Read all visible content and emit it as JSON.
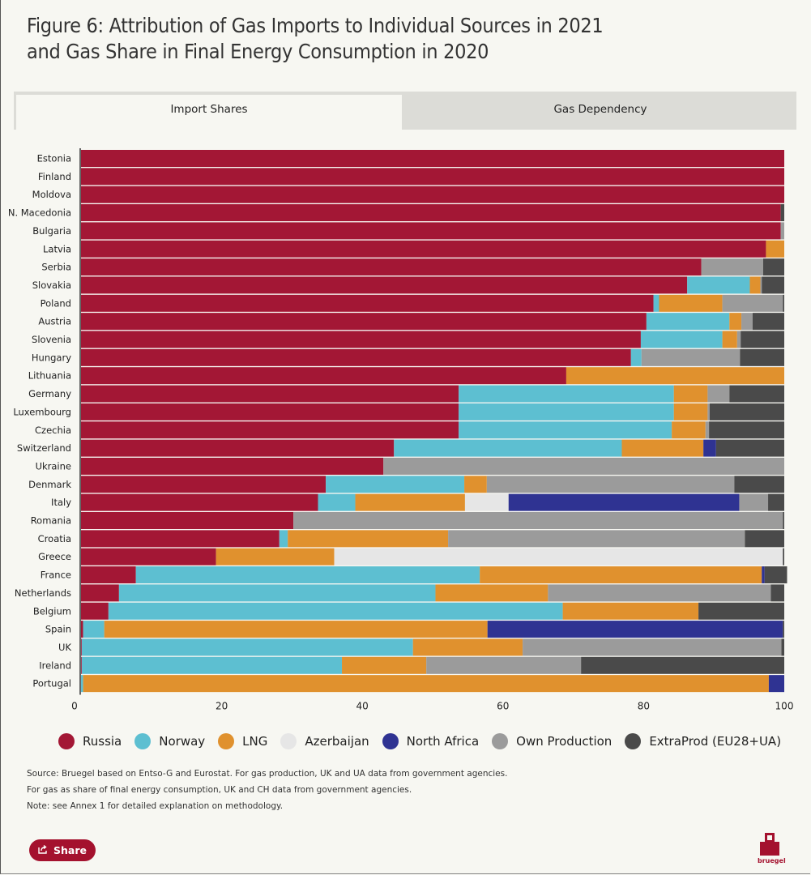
{
  "title": {
    "line1": "Figure 6: Attribution of Gas Imports to Individual Sources in 2021",
    "line2": "and Gas Share in Final Energy Consumption in 2020"
  },
  "tabs": [
    {
      "label": "Import Shares",
      "active": true
    },
    {
      "label": "Gas Dependency",
      "active": false
    }
  ],
  "legend": [
    {
      "name": "Russia",
      "color": "#a31735"
    },
    {
      "name": "Norway",
      "color": "#5dbfd1"
    },
    {
      "name": "LNG",
      "color": "#e0912e"
    },
    {
      "name": "Azerbaijan",
      "color": "#e6e6e6"
    },
    {
      "name": "North Africa",
      "color": "#2f3392"
    },
    {
      "name": "Own Production",
      "color": "#9b9b9b"
    },
    {
      "name": "ExtraProd (EU28+UA)",
      "color": "#4a4a4a"
    }
  ],
  "chart_data": {
    "type": "bar",
    "orientation": "horizontal",
    "stacked": true,
    "xlim": [
      0,
      100
    ],
    "xticks": [
      0,
      20,
      40,
      60,
      80,
      100
    ],
    "categories": [
      "Estonia",
      "Finland",
      "Moldova",
      "N. Macedonia",
      "Bulgaria",
      "Latvia",
      "Serbia",
      "Slovakia",
      "Poland",
      "Austria",
      "Slovenia",
      "Hungary",
      "Lithuania",
      "Germany",
      "Luxembourg",
      "Czechia",
      "Switzerland",
      "Ukraine",
      "Denmark",
      "Italy",
      "Romania",
      "Croatia",
      "Greece",
      "France",
      "Netherlands",
      "Belgium",
      "Spain",
      "UK",
      "Ireland",
      "Portugal"
    ],
    "series": [
      {
        "name": "Russia",
        "values": [
          100,
          100,
          100,
          99.5,
          99.5,
          97.4,
          88.2,
          86.2,
          81.4,
          80.4,
          79.6,
          78.2,
          69,
          53.7,
          53.7,
          53.7,
          44.5,
          43,
          34.8,
          33.7,
          30.2,
          28.2,
          19.2,
          7.8,
          5.4,
          3.9,
          0.3,
          0.1,
          0.1,
          0
        ]
      },
      {
        "name": "Norway",
        "values": [
          0,
          0,
          0,
          0,
          0,
          0,
          0,
          8.9,
          0.8,
          11.8,
          11.6,
          1.5,
          0,
          30.6,
          30.6,
          30.3,
          32.4,
          0,
          19.7,
          5.3,
          0,
          1.2,
          0,
          48.9,
          45,
          64.6,
          3,
          47.1,
          37,
          0.3
        ]
      },
      {
        "name": "LNG",
        "values": [
          0,
          0,
          0,
          0,
          0,
          2.6,
          0,
          1.5,
          9,
          1.7,
          2.1,
          0,
          31,
          4.8,
          4.8,
          4.8,
          11.6,
          0,
          3.2,
          15.6,
          0,
          22.8,
          16.8,
          40.1,
          16,
          19.3,
          54.5,
          15.6,
          12,
          97.5
        ]
      },
      {
        "name": "Azerbaijan",
        "values": [
          0,
          0,
          0,
          0,
          0,
          0,
          0,
          0,
          0,
          0,
          0,
          0,
          0,
          0,
          0,
          0,
          0,
          0,
          0,
          6.2,
          0,
          0,
          63.8,
          0,
          0,
          0,
          0,
          0,
          0,
          0
        ]
      },
      {
        "name": "North Africa",
        "values": [
          0,
          0,
          0,
          0,
          0,
          0,
          0,
          0,
          0,
          0,
          0,
          0,
          0,
          0,
          0,
          0,
          1.8,
          0,
          0,
          32.8,
          0,
          0,
          0,
          0.4,
          0,
          0,
          42,
          0,
          0,
          2.2
        ]
      },
      {
        "name": "Own Production",
        "values": [
          0,
          0,
          0,
          0,
          0.5,
          0,
          8.8,
          0.2,
          8.6,
          1.6,
          0.5,
          14,
          0,
          3.1,
          0.3,
          0.5,
          0,
          57,
          35.2,
          4.1,
          69.6,
          42.2,
          0,
          0,
          31.7,
          0,
          0,
          36.8,
          22,
          0
        ]
      },
      {
        "name": "ExtraProd (EU28+UA)",
        "values": [
          0,
          0,
          0,
          0.5,
          0,
          0,
          3,
          3.2,
          0.2,
          4.5,
          6.2,
          6.3,
          0,
          7.8,
          10.6,
          10.7,
          9.7,
          0,
          7.1,
          2.3,
          0.2,
          5.6,
          0.2,
          3.2,
          1.9,
          12.2,
          0.2,
          0.4,
          28.9,
          0
        ]
      }
    ]
  },
  "notes": [
    "Source: Bruegel based on Entso-G and Eurostat. For gas production, UK and UA data from government agencies.",
    "For gas as share of final energy consumption, UK and CH data from government agencies.",
    "Note: see Annex 1 for detailed explanation on methodology."
  ],
  "share_label": "Share",
  "logo_text": "bruegel"
}
